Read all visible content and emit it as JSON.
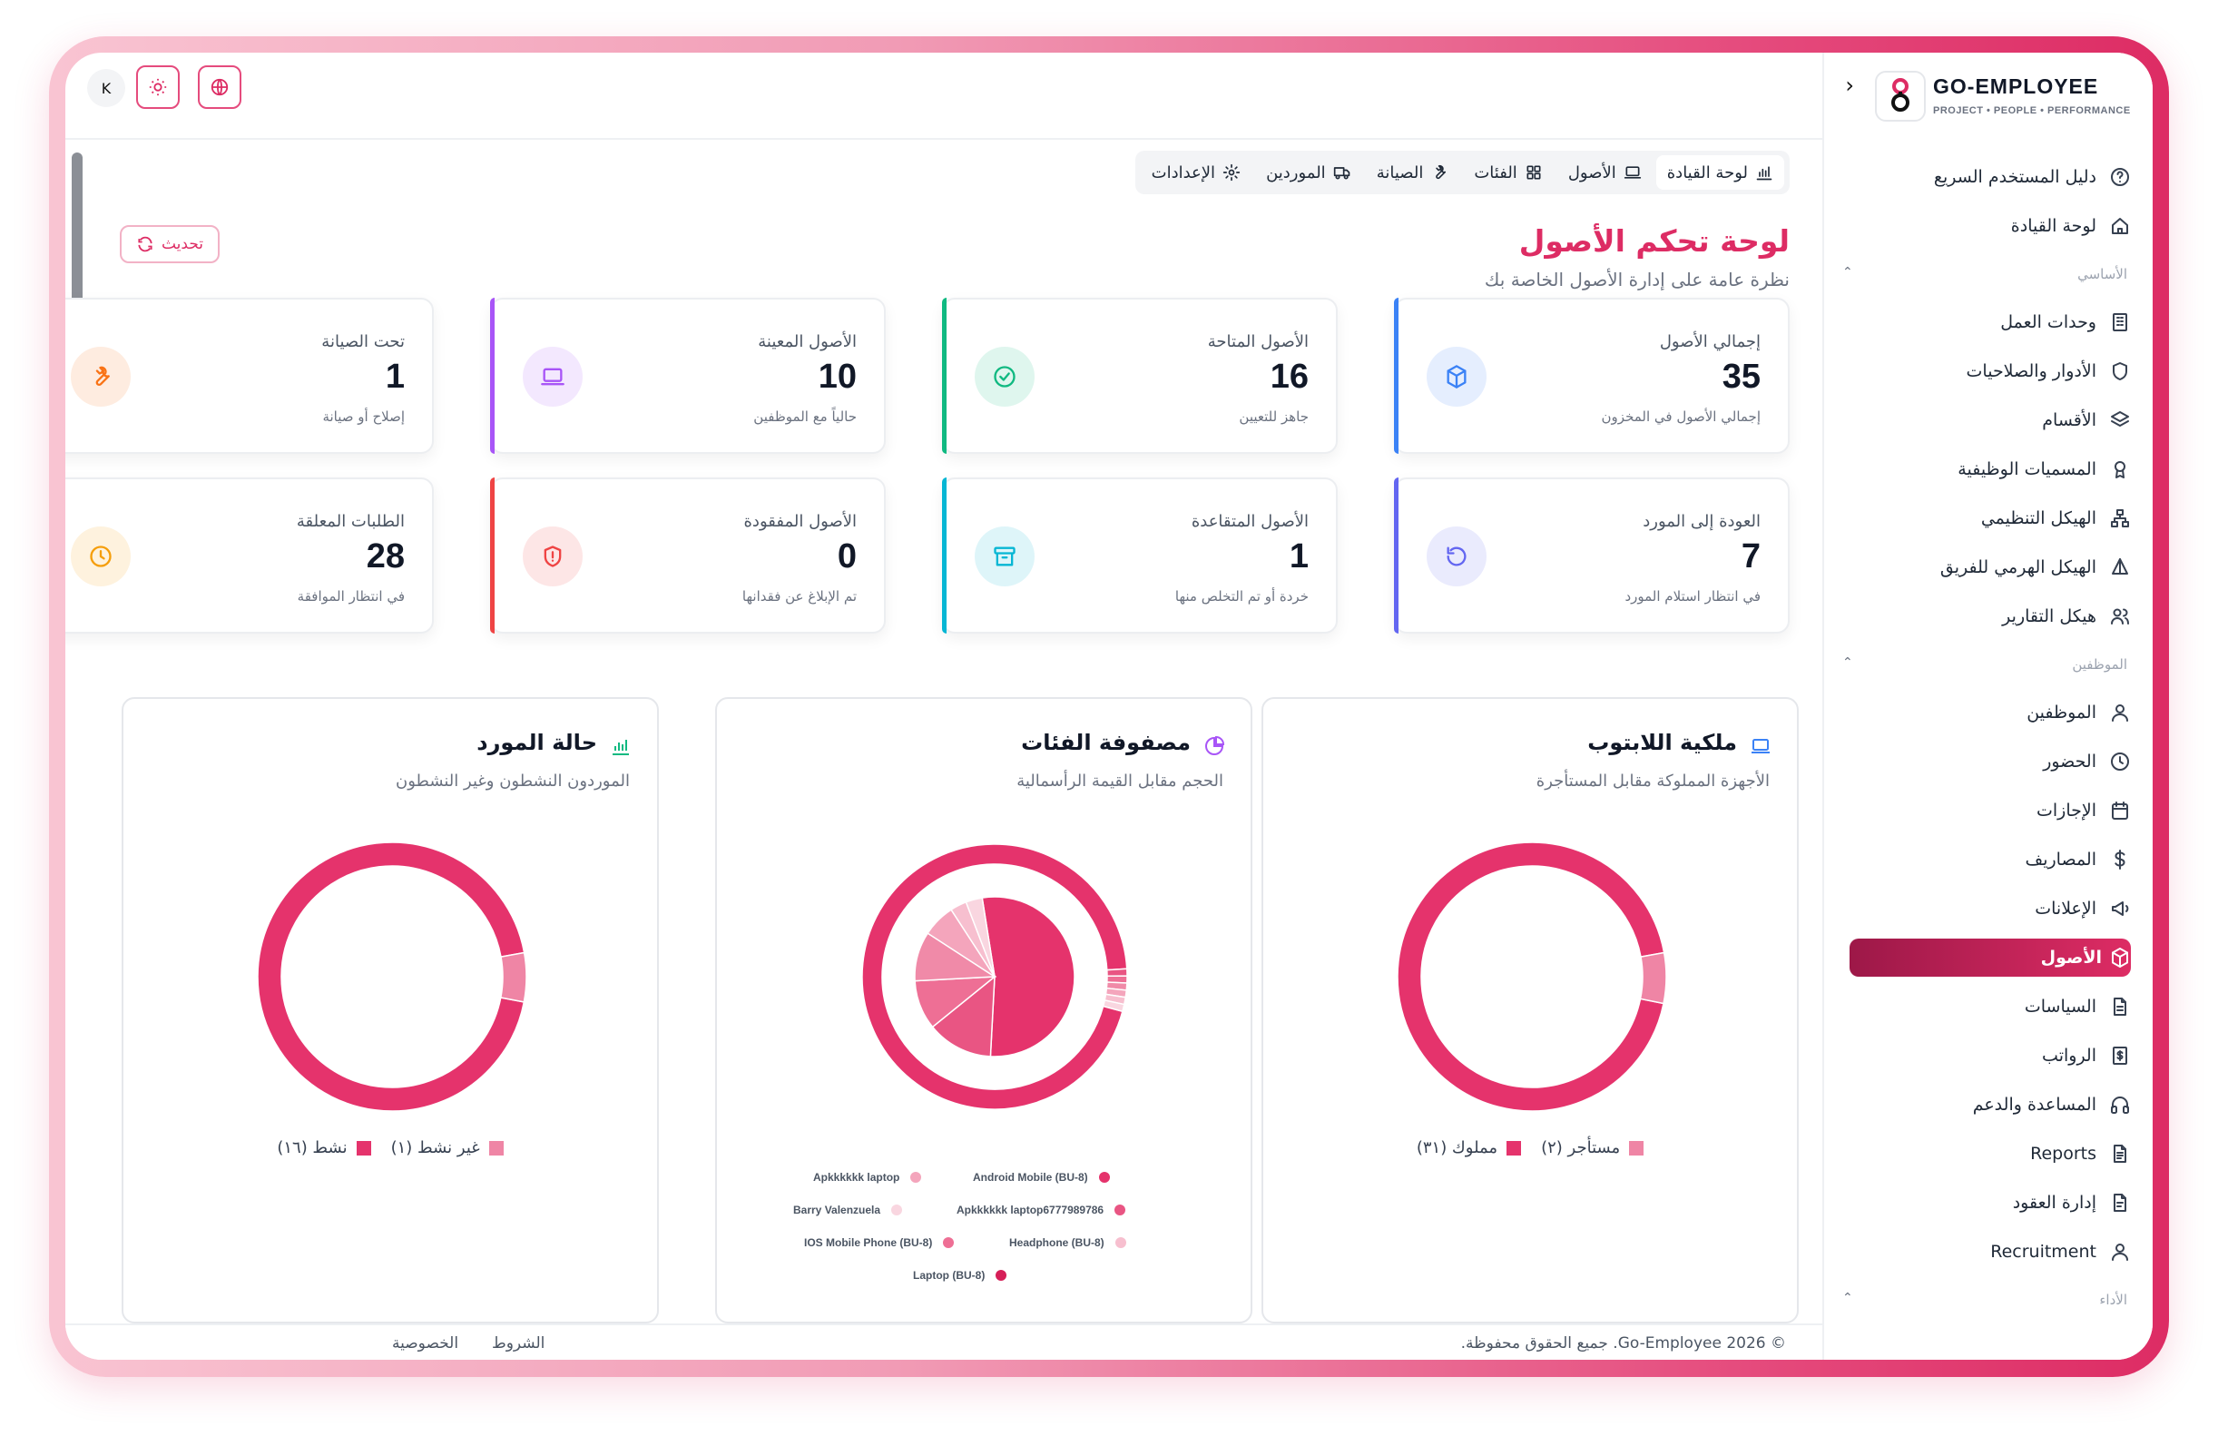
{
  "brand": {
    "title": "GO-EMPLOYEE",
    "subtitle": "PROJECT • PEOPLE • PERFORMANCE"
  },
  "topbar": {
    "avatar_letter": "K"
  },
  "sidebar": {
    "items_top": [
      {
        "label": "دليل المستخدم السريع",
        "icon": "help-circle-icon"
      },
      {
        "label": "لوحة القيادة",
        "icon": "home-icon"
      }
    ],
    "section_basic": "الأساسي",
    "items_basic": [
      {
        "label": "وحدات العمل",
        "icon": "building-icon"
      },
      {
        "label": "الأدوار والصلاحيات",
        "icon": "shield-icon"
      },
      {
        "label": "الأقسام",
        "icon": "layers-icon"
      },
      {
        "label": "المسميات الوظيفية",
        "icon": "award-icon"
      },
      {
        "label": "الهيكل التنظيمي",
        "icon": "org-chart-icon"
      },
      {
        "label": "الهيكل الهرمي للفريق",
        "icon": "pyramid-icon"
      },
      {
        "label": "هيكل التقارير",
        "icon": "users-icon"
      }
    ],
    "section_employees": "الموظفين",
    "items_employees": [
      {
        "label": "الموظفين",
        "icon": "user-icon"
      },
      {
        "label": "الحضور",
        "icon": "clock-icon"
      },
      {
        "label": "الإجازات",
        "icon": "calendar-icon"
      },
      {
        "label": "المصاريف",
        "icon": "dollar-icon"
      },
      {
        "label": "الإعلانات",
        "icon": "megaphone-icon"
      },
      {
        "label": "الأصول",
        "icon": "box-icon",
        "active": true
      },
      {
        "label": "السياسات",
        "icon": "document-icon"
      },
      {
        "label": "الرواتب",
        "icon": "payroll-icon"
      },
      {
        "label": "المساعدة والدعم",
        "icon": "headphones-icon"
      },
      {
        "label": "Reports",
        "icon": "report-icon"
      },
      {
        "label": "إدارة العقود",
        "icon": "contract-icon"
      },
      {
        "label": "Recruitment",
        "icon": "recruit-icon"
      }
    ],
    "section_performance": "الأداء"
  },
  "tabs": [
    {
      "label": "لوحة القيادة",
      "icon": "bar-chart-icon",
      "active": true
    },
    {
      "label": "الأصول",
      "icon": "laptop-icon"
    },
    {
      "label": "الفئات",
      "icon": "grid-icon"
    },
    {
      "label": "الصيانة",
      "icon": "wrench-icon"
    },
    {
      "label": "الموردين",
      "icon": "truck-icon"
    },
    {
      "label": "الإعدادات",
      "icon": "gear-icon"
    }
  ],
  "page": {
    "title": "لوحة تحكم الأصول",
    "subtitle": "نظرة عامة على إدارة الأصول الخاصة بك",
    "refresh_label": "تحديث"
  },
  "cards": [
    {
      "title": "إجمالي الأصول",
      "value": "35",
      "sub": "إجمالي الأصول في المخزون",
      "color": "#3b82f6",
      "icon": "cube-icon"
    },
    {
      "title": "الأصول المتاحة",
      "value": "16",
      "sub": "جاهز للتعيين",
      "color": "#10b981",
      "icon": "check-circle-icon"
    },
    {
      "title": "الأصول المعينة",
      "value": "10",
      "sub": "حالياً مع الموظفين",
      "color": "#a855f7",
      "icon": "laptop-icon"
    },
    {
      "title": "تحت الصيانة",
      "value": "1",
      "sub": "إصلاح أو صيانة",
      "color": "#f97316",
      "icon": "wrench-icon"
    },
    {
      "title": "العودة إلى المورد",
      "value": "7",
      "sub": "في انتظار استلام المورد",
      "color": "#6366f1",
      "icon": "undo-icon"
    },
    {
      "title": "الأصول المتقاعدة",
      "value": "1",
      "sub": "خردة أو تم التخلص منها",
      "color": "#06b6d4",
      "icon": "archive-icon"
    },
    {
      "title": "الأصول المفقودة",
      "value": "0",
      "sub": "تم الإبلاغ عن فقدانها",
      "color": "#ef4444",
      "icon": "shield-alert-icon"
    },
    {
      "title": "الطلبات المعلقة",
      "value": "28",
      "sub": "في انتظار الموافقة",
      "color": "#f59e0b",
      "icon": "clock-icon"
    }
  ],
  "panels": {
    "laptop": {
      "title": "ملكية اللابتوب",
      "subtitle": "الأجهزة المملوكة مقابل المستأجرة",
      "legend": [
        "مستأجر (٢)",
        "مملوك (٣١)"
      ]
    },
    "categories": {
      "title": "مصفوفة الفئات",
      "subtitle": "الحجم مقابل القيمة الرأسمالية",
      "legend": [
        "Android Mobile (BU-8)",
        "Apkkkkkk laptop",
        "Apkkkkkk laptop6777989786",
        "Barry Valenzuela",
        "Headphone (BU-8)",
        "IOS Mobile Phone (BU-8)",
        "Laptop (BU-8)"
      ]
    },
    "supplier": {
      "title": "حالة المورد",
      "subtitle": "الموردون النشطون وغير النشطون",
      "legend": [
        "غير نشط (١)",
        "نشط (١٦)"
      ]
    }
  },
  "chart_data": [
    {
      "type": "pie",
      "title": "ملكية اللابتوب",
      "categories": [
        "مملوك",
        "مستأجر"
      ],
      "values": [
        31,
        2
      ],
      "colors": [
        "#e5336c",
        "#ef85a5"
      ]
    },
    {
      "type": "pie",
      "title": "مصفوفة الفئات",
      "categories": [
        "Laptop (BU-8)",
        "Android Mobile (BU-8)",
        "Apkkkkkk laptop",
        "Apkkkkkk laptop6777989786",
        "Barry Valenzuela",
        "Headphone (BU-8)",
        "IOS Mobile Phone (BU-8)"
      ],
      "values": [
        16,
        4,
        3,
        3,
        2,
        1,
        1
      ],
      "outer_values": [
        33,
        0.3,
        0.3,
        0.3,
        0.3,
        0.3,
        0.3
      ],
      "colors": [
        "#e5336c",
        "#e95583",
        "#ee6f95",
        "#f08aa8",
        "#f4a5bc",
        "#f7bfcf",
        "#f9d6e0"
      ]
    },
    {
      "type": "pie",
      "title": "حالة المورد",
      "categories": [
        "نشط",
        "غير نشط"
      ],
      "values": [
        16,
        1
      ],
      "colors": [
        "#e5336c",
        "#ef85a5"
      ]
    }
  ],
  "footer": {
    "copyright": "© Go-Employee 2026. جميع الحقوق محفوظة.",
    "terms": "الشروط",
    "privacy": "الخصوصية"
  }
}
